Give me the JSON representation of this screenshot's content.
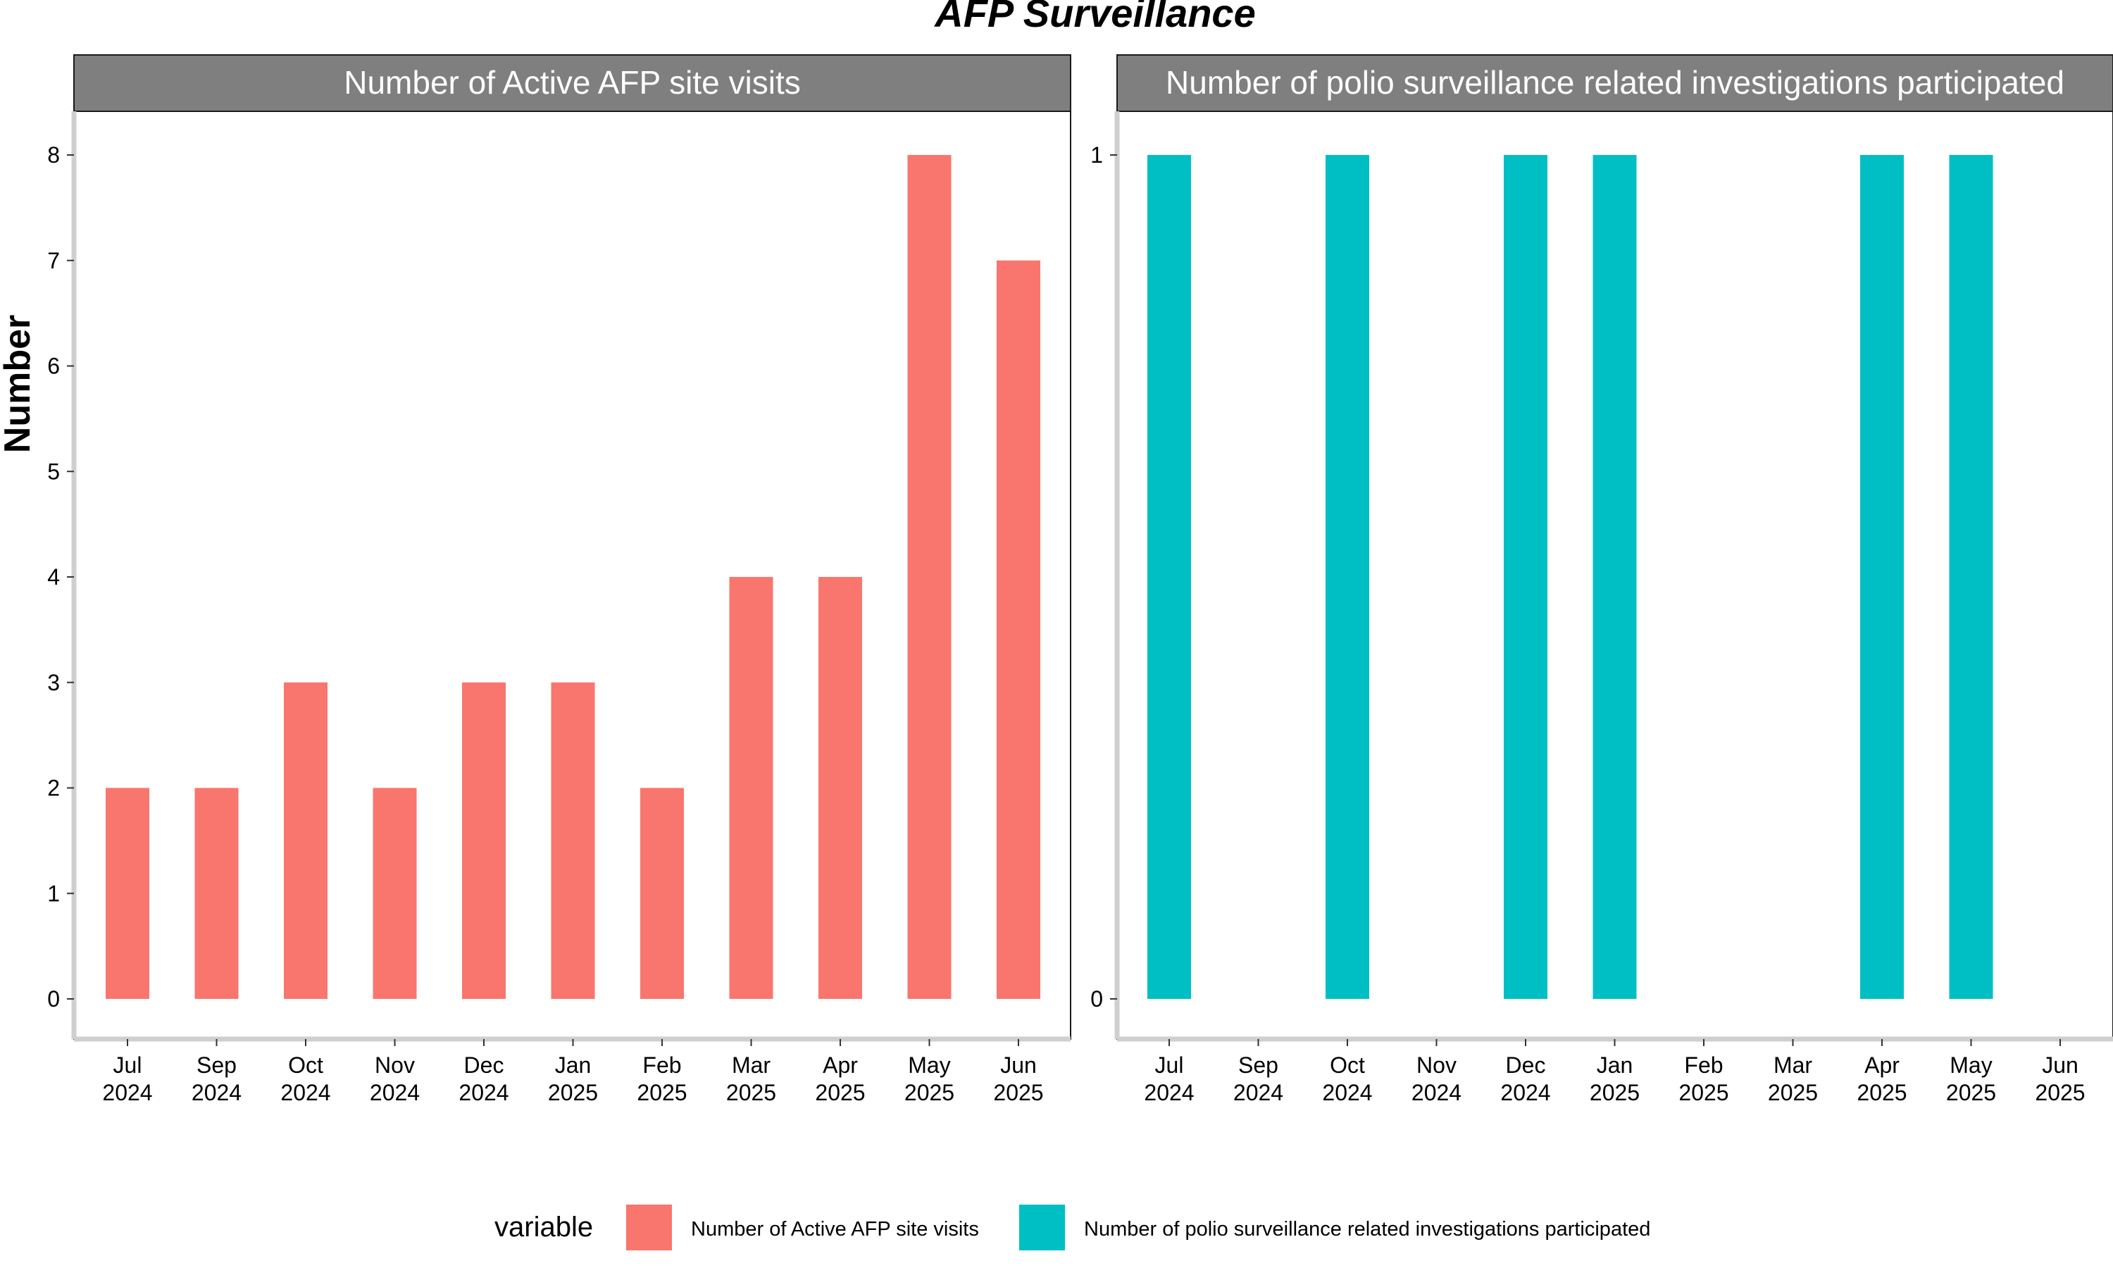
{
  "chart_data": {
    "type": "bar",
    "title": "AFP Surveillance",
    "ylabel": "Number",
    "xlabel": "",
    "legend": {
      "title": "variable",
      "placement": "bottom",
      "entries": [
        {
          "label": "Number of Active AFP site visits",
          "color": "#F8766D"
        },
        {
          "label": "Number of polio surveillance related investigations participated",
          "color": "#00BFC4"
        }
      ]
    },
    "grid": false,
    "x_ticks": [
      {
        "month": "Jul",
        "year": "2024"
      },
      {
        "month": "Sep",
        "year": "2024"
      },
      {
        "month": "Oct",
        "year": "2024"
      },
      {
        "month": "Nov",
        "year": "2024"
      },
      {
        "month": "Dec",
        "year": "2024"
      },
      {
        "month": "Jan",
        "year": "2025"
      },
      {
        "month": "Feb",
        "year": "2025"
      },
      {
        "month": "Mar",
        "year": "2025"
      },
      {
        "month": "Apr",
        "year": "2025"
      },
      {
        "month": "May",
        "year": "2025"
      },
      {
        "month": "Jun",
        "year": "2025"
      }
    ],
    "panels": [
      {
        "strip": "Number of Active AFP site visits",
        "color": "#F8766D",
        "ylim": [
          -0.35,
          8.35
        ],
        "y_ticks": [
          0,
          1,
          2,
          3,
          4,
          5,
          6,
          7,
          8
        ],
        "values": [
          2,
          2,
          3,
          2,
          3,
          3,
          2,
          4,
          4,
          8,
          7
        ]
      },
      {
        "strip": "Number of polio surveillance related investigations participated",
        "color": "#00BFC4",
        "ylim": [
          -0.05,
          1.05
        ],
        "y_ticks": [
          0,
          1
        ],
        "values": [
          1,
          0,
          1,
          0,
          1,
          1,
          0,
          0,
          1,
          1,
          0
        ]
      }
    ]
  }
}
